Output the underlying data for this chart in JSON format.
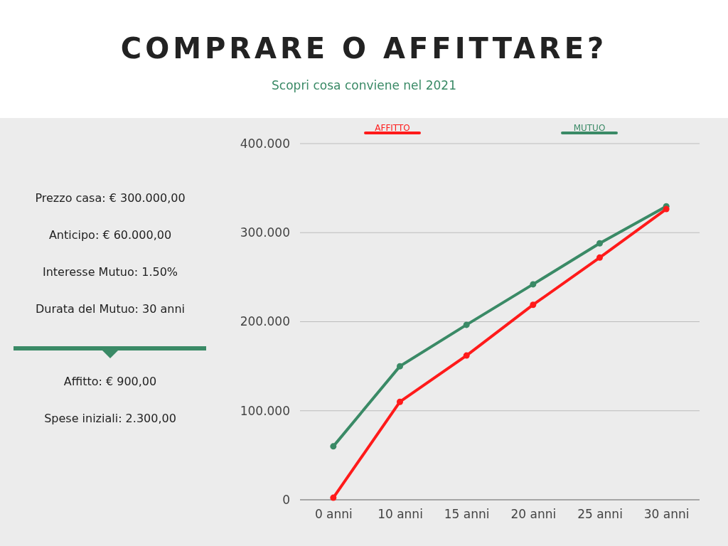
{
  "chart_data": {
    "type": "line",
    "title": "COMPRARE O AFFITTARE?",
    "subtitle": "Scopri cosa conviene nel 2021",
    "categories": [
      "0 anni",
      "10 anni",
      "15 anni",
      "20 anni",
      "25 anni",
      "30 anni"
    ],
    "series": [
      {
        "name": "AFFITTO",
        "color": "#ff1a1a",
        "values": [
          2300,
          110000,
          162000,
          219000,
          272000,
          326500
        ]
      },
      {
        "name": "MUTUO",
        "color": "#3a8a66",
        "values": [
          60000,
          150000,
          196500,
          242000,
          288000,
          329500
        ]
      }
    ],
    "ylim": [
      0,
      400000
    ],
    "yticks": [
      {
        "value": 0,
        "label": "0"
      },
      {
        "value": 100000,
        "label": "100.000"
      },
      {
        "value": 200000,
        "label": "200.000"
      },
      {
        "value": 300000,
        "label": "300.000"
      },
      {
        "value": 400000,
        "label": "400.000"
      }
    ],
    "grid": "y",
    "legend": "top",
    "marker": "circle",
    "line_style": "solid",
    "annotations": [
      "Prezzo casa: € 300.000,00",
      "Anticipo: € 60.000,00",
      "Interesse Mutuo: 1.50%",
      "Durata del Mutuo: 30 anni",
      "Affitto: € 900,00",
      "Spese iniziali: 2.300,00"
    ]
  }
}
